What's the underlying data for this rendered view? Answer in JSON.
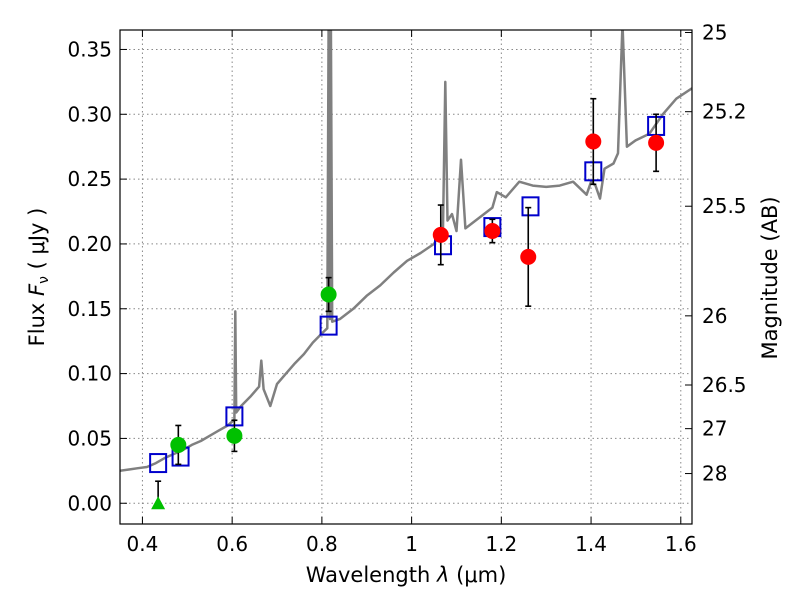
{
  "chart_data": {
    "type": "scatter",
    "xlabel_prefix": "Wavelength  ",
    "xlabel_symbol": "λ",
    "xlabel_unit": " (μm)",
    "ylabel_prefix": "Flux  ",
    "ylabel_symbol": "F",
    "ylabel_subscript": "ν",
    "ylabel_unit": "  ( μJy )",
    "y2label": "Magnitude (AB)",
    "xlim": [
      0.35,
      1.625
    ],
    "ylim": [
      -0.016,
      0.365
    ],
    "grid": true,
    "x_ticks": [
      {
        "value": 0.4,
        "label": "0.4"
      },
      {
        "value": 0.6,
        "label": "0.6"
      },
      {
        "value": 0.8,
        "label": "0.8"
      },
      {
        "value": 1.0,
        "label": "1"
      },
      {
        "value": 1.2,
        "label": "1.2"
      },
      {
        "value": 1.4,
        "label": "1.4"
      },
      {
        "value": 1.6,
        "label": "1.6"
      }
    ],
    "y_ticks": [
      {
        "value": 0.0,
        "label": "0.00"
      },
      {
        "value": 0.05,
        "label": "0.05"
      },
      {
        "value": 0.1,
        "label": "0.10"
      },
      {
        "value": 0.15,
        "label": "0.15"
      },
      {
        "value": 0.2,
        "label": "0.20"
      },
      {
        "value": 0.25,
        "label": "0.25"
      },
      {
        "value": 0.3,
        "label": "0.30"
      },
      {
        "value": 0.35,
        "label": "0.35"
      }
    ],
    "mag_ticks": [
      {
        "mag": 25,
        "label": "25"
      },
      {
        "mag": 25.2,
        "label": "25.2"
      },
      {
        "mag": 25.5,
        "label": "25.5"
      },
      {
        "mag": 26,
        "label": "26"
      },
      {
        "mag": 26.5,
        "label": "26.5"
      },
      {
        "mag": 27,
        "label": "27"
      },
      {
        "mag": 28,
        "label": "28"
      }
    ],
    "colors": {
      "model": "#808080",
      "green": "#00c000",
      "red": "#ff0000",
      "box": "#0000cc",
      "grid": "#888888"
    },
    "series": [
      {
        "name": "model-spectrum",
        "kind": "line",
        "points": [
          [
            0.35,
            0.025
          ],
          [
            0.37,
            0.026
          ],
          [
            0.39,
            0.027
          ],
          [
            0.41,
            0.028
          ],
          [
            0.43,
            0.031
          ],
          [
            0.45,
            0.035
          ],
          [
            0.47,
            0.038
          ],
          [
            0.49,
            0.041
          ],
          [
            0.51,
            0.045
          ],
          [
            0.53,
            0.048
          ],
          [
            0.55,
            0.052
          ],
          [
            0.57,
            0.056
          ],
          [
            0.59,
            0.06
          ],
          [
            0.6,
            0.063
          ],
          [
            0.605,
            0.065
          ],
          [
            0.607,
            0.148
          ],
          [
            0.609,
            0.07
          ],
          [
            0.62,
            0.075
          ],
          [
            0.64,
            0.082
          ],
          [
            0.66,
            0.09
          ],
          [
            0.665,
            0.11
          ],
          [
            0.67,
            0.088
          ],
          [
            0.685,
            0.075
          ],
          [
            0.7,
            0.092
          ],
          [
            0.72,
            0.1
          ],
          [
            0.74,
            0.108
          ],
          [
            0.76,
            0.115
          ],
          [
            0.78,
            0.124
          ],
          [
            0.8,
            0.131
          ],
          [
            0.812,
            0.135
          ],
          [
            0.815,
            0.37
          ],
          [
            0.818,
            0.142
          ],
          [
            0.82,
            0.37
          ],
          [
            0.823,
            0.14
          ],
          [
            0.84,
            0.142
          ],
          [
            0.87,
            0.15
          ],
          [
            0.9,
            0.16
          ],
          [
            0.93,
            0.168
          ],
          [
            0.96,
            0.178
          ],
          [
            0.99,
            0.187
          ],
          [
            1.02,
            0.193
          ],
          [
            1.05,
            0.2
          ],
          [
            1.07,
            0.212
          ],
          [
            1.075,
            0.325
          ],
          [
            1.08,
            0.218
          ],
          [
            1.09,
            0.223
          ],
          [
            1.1,
            0.21
          ],
          [
            1.11,
            0.265
          ],
          [
            1.12,
            0.212
          ],
          [
            1.15,
            0.22
          ],
          [
            1.18,
            0.228
          ],
          [
            1.19,
            0.24
          ],
          [
            1.21,
            0.236
          ],
          [
            1.24,
            0.248
          ],
          [
            1.27,
            0.245
          ],
          [
            1.3,
            0.244
          ],
          [
            1.33,
            0.245
          ],
          [
            1.36,
            0.248
          ],
          [
            1.39,
            0.238
          ],
          [
            1.4,
            0.248
          ],
          [
            1.41,
            0.245
          ],
          [
            1.42,
            0.235
          ],
          [
            1.43,
            0.258
          ],
          [
            1.45,
            0.262
          ],
          [
            1.46,
            0.27
          ],
          [
            1.47,
            0.37
          ],
          [
            1.48,
            0.275
          ],
          [
            1.5,
            0.28
          ],
          [
            1.53,
            0.285
          ],
          [
            1.56,
            0.3
          ],
          [
            1.59,
            0.312
          ],
          [
            1.625,
            0.32
          ]
        ]
      },
      {
        "name": "model-broadband",
        "kind": "open-square",
        "points": [
          [
            0.435,
            0.031
          ],
          [
            0.485,
            0.036
          ],
          [
            0.605,
            0.067
          ],
          [
            0.815,
            0.137
          ],
          [
            1.07,
            0.199
          ],
          [
            1.18,
            0.213
          ],
          [
            1.265,
            0.229
          ],
          [
            1.405,
            0.256
          ],
          [
            1.545,
            0.291
          ]
        ]
      },
      {
        "name": "observed-green",
        "kind": "circle",
        "points": [
          [
            0.48,
            0.045,
            0.015
          ],
          [
            0.605,
            0.052,
            0.012
          ],
          [
            0.815,
            0.161,
            0.013
          ]
        ]
      },
      {
        "name": "observed-red",
        "kind": "circle",
        "points": [
          [
            1.065,
            0.207,
            0.023
          ],
          [
            1.18,
            0.21,
            0.009
          ],
          [
            1.26,
            0.19,
            0.038
          ],
          [
            1.405,
            0.279,
            0.033
          ],
          [
            1.545,
            0.278,
            0.022
          ]
        ]
      },
      {
        "name": "upper-limit",
        "kind": "triangle",
        "points": [
          [
            0.435,
            0.0,
            0.017
          ]
        ]
      }
    ]
  }
}
